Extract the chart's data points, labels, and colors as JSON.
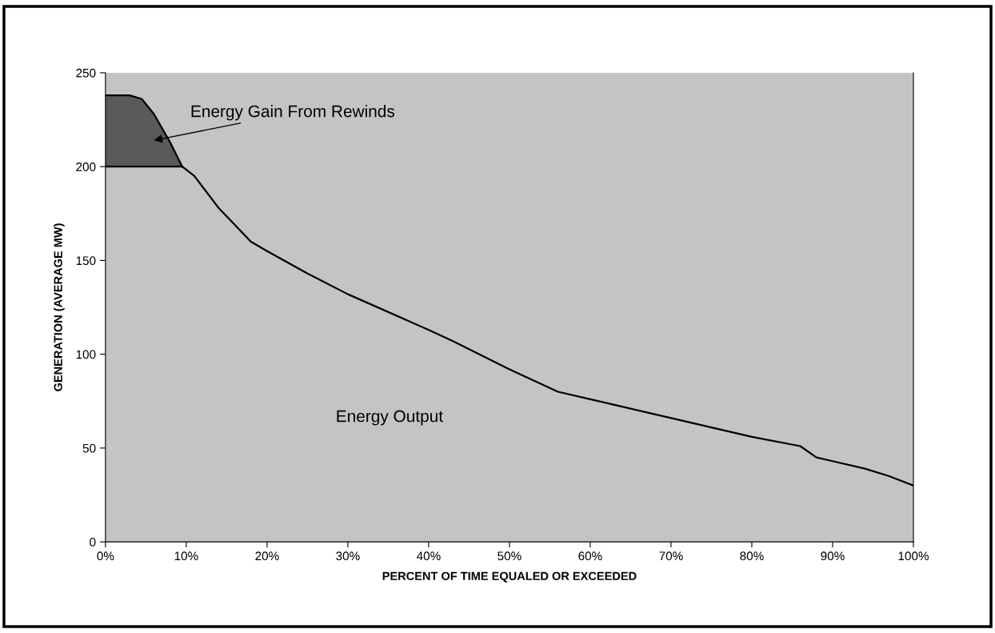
{
  "chart_data": {
    "type": "area",
    "stacked": true,
    "xlabel": "PERCENT OF TIME EQUALED OR EXCEEDED",
    "ylabel": "GENERATION (AVERAGE MW)",
    "x": [
      0,
      3,
      4.5,
      6,
      8,
      9.5,
      11,
      14,
      18,
      20,
      25,
      30,
      40,
      43,
      50,
      56,
      60,
      70,
      80,
      86,
      88,
      90,
      94,
      97,
      100
    ],
    "series": [
      {
        "name": "Energy Output",
        "color": "#c4c4c4",
        "values": [
          200,
          200,
          200,
          200,
          200,
          200,
          195,
          178,
          160,
          155,
          143,
          132,
          113,
          107,
          92,
          80,
          76,
          66,
          56,
          51,
          45,
          43,
          39,
          35,
          30
        ]
      },
      {
        "name": "Energy Gain From Rewinds",
        "color": "#5a5a5a",
        "values": [
          38,
          38,
          36,
          28,
          13,
          0,
          null,
          null,
          null,
          null,
          null,
          null,
          null,
          null,
          null,
          null,
          null,
          null,
          null,
          null,
          null,
          null,
          null,
          null,
          null
        ]
      }
    ],
    "xlim": [
      0,
      100
    ],
    "ylim": [
      0,
      250
    ],
    "xticks": [
      {
        "value": 0,
        "label": "0%"
      },
      {
        "value": 10,
        "label": "10%"
      },
      {
        "value": 20,
        "label": "20%"
      },
      {
        "value": 30,
        "label": "30%"
      },
      {
        "value": 40,
        "label": "40%"
      },
      {
        "value": 50,
        "label": "50%"
      },
      {
        "value": 60,
        "label": "60%"
      },
      {
        "value": 70,
        "label": "70%"
      },
      {
        "value": 80,
        "label": "80%"
      },
      {
        "value": 90,
        "label": "90%"
      },
      {
        "value": 100,
        "label": "100%"
      }
    ],
    "yticks": [
      0,
      50,
      100,
      150,
      200,
      250
    ],
    "grid": false,
    "legend": false
  }
}
